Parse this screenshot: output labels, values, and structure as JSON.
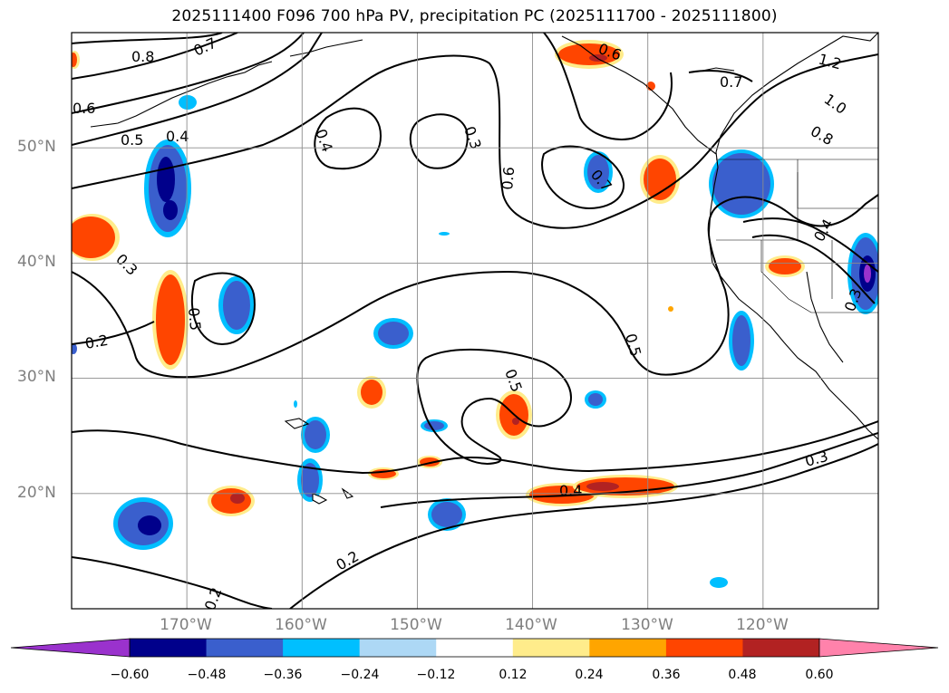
{
  "title": "2025111400 F096 700 hPa PV, precipitation PC (2025111700 - 2025111800)",
  "map": {
    "lat_labels": [
      {
        "label": "50°N",
        "lat": 50
      },
      {
        "label": "40°N",
        "lat": 40
      },
      {
        "label": "30°N",
        "lat": 30
      },
      {
        "label": "20°N",
        "lat": 20
      }
    ],
    "lon_labels": [
      {
        "label": "170°W",
        "lon": -170
      },
      {
        "label": "160°W",
        "lon": -160
      },
      {
        "label": "150°W",
        "lon": -150
      },
      {
        "label": "140°W",
        "lon": -140
      },
      {
        "label": "130°W",
        "lon": -130
      },
      {
        "label": "120°W",
        "lon": -120
      }
    ],
    "contour_labels": [
      "0.8",
      "0.7",
      "0.6",
      "0.5",
      "0.4",
      "0.4",
      "0.3",
      "0.6",
      "0.3",
      "0.2",
      "0.5",
      "0.5",
      "0.5",
      "0.4",
      "0.3",
      "0.2",
      "0.2",
      "0.6",
      "0.7",
      "0.7",
      "1.2",
      "1.0",
      "0.8",
      "0.4",
      "0.3"
    ]
  },
  "colorbar": {
    "colors": [
      "#9a32cd",
      "#00008b",
      "#3a5fcd",
      "#00bfff",
      "#add8f5",
      "#ffffff",
      "#ffec8b",
      "#ffa500",
      "#ff4500",
      "#b22222",
      "#ff82ab"
    ],
    "ticks": [
      "−0.60",
      "−0.48",
      "−0.36",
      "−0.24",
      "−0.12",
      "0.12",
      "0.24",
      "0.36",
      "0.48",
      "0.60"
    ]
  }
}
